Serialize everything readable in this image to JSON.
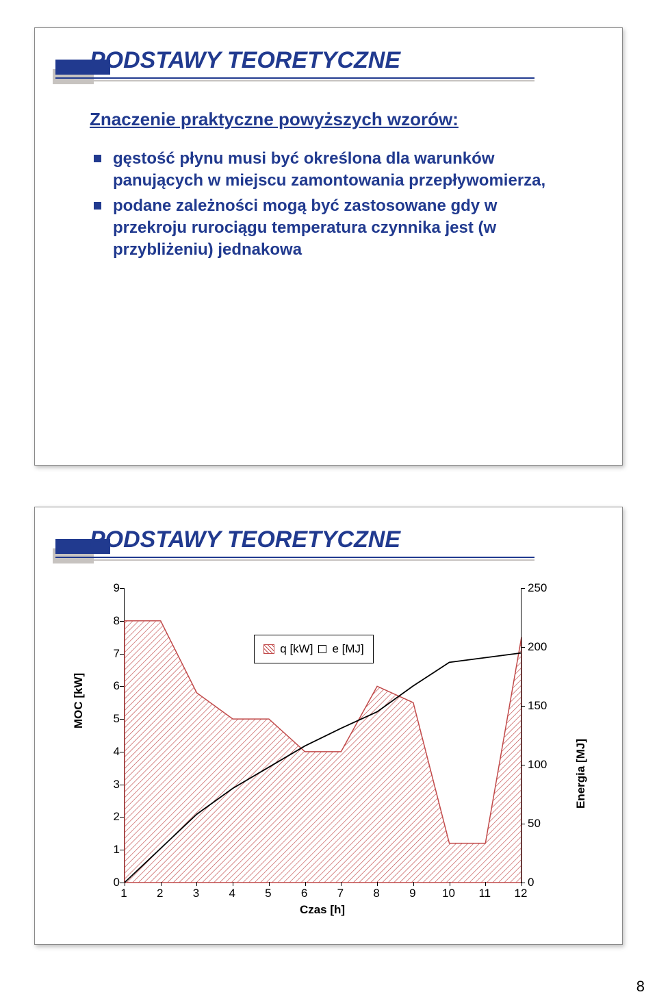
{
  "slide1": {
    "title": "PODSTAWY TEORETYCZNE",
    "subhead": "Znaczenie praktyczne powyższych wzorów:",
    "bullets": [
      "gęstość płynu musi być określona dla warunków panujących w miejscu zamontowania przepływomierza,",
      "podane zależności mogą być zastosowane gdy w przekroju rurociągu temperatura czynnika jest (w przybliżeniu) jednakowa"
    ]
  },
  "slide2": {
    "title": "PODSTAWY TEORETYCZNE"
  },
  "chart": {
    "x_categories": [
      "1",
      "2",
      "3",
      "4",
      "5",
      "6",
      "7",
      "8",
      "9",
      "10",
      "11",
      "12"
    ],
    "q_kw": [
      8,
      8,
      5.8,
      5,
      5,
      4,
      4,
      6,
      5.5,
      1.2,
      1.2,
      7.5
    ],
    "e_mj": [
      0,
      29,
      58,
      80,
      98,
      116,
      131,
      145,
      167,
      187,
      191,
      195
    ],
    "y_left": {
      "min": 0,
      "max": 9,
      "step": 1,
      "label": "MOC [kW]"
    },
    "y_right": {
      "min": 0,
      "max": 250,
      "step": 50,
      "label": "Energia [MJ]"
    },
    "x_label": "Czas [h]",
    "legend": {
      "q": "q [kW]",
      "e": "e [MJ]"
    },
    "colors": {
      "area_stroke": "#c14a4a",
      "line": "#000000",
      "heading": "#213a8f",
      "shadow": "#c7c3c0"
    }
  },
  "page_number": "8"
}
